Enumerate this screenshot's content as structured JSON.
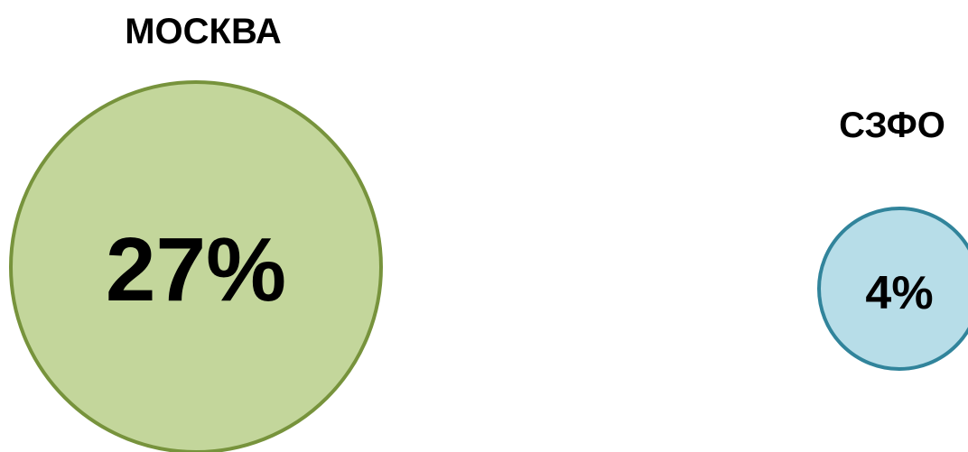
{
  "chart_data": {
    "type": "bubble",
    "items": [
      {
        "name": "МОСКВА",
        "value": 27,
        "value_label": "27%",
        "fill": "#c3d69b",
        "stroke": "#77933c"
      },
      {
        "name": "СЗФО",
        "value": 4,
        "value_label": "4%",
        "fill": "#b7dde8",
        "stroke": "#31849b"
      }
    ]
  }
}
